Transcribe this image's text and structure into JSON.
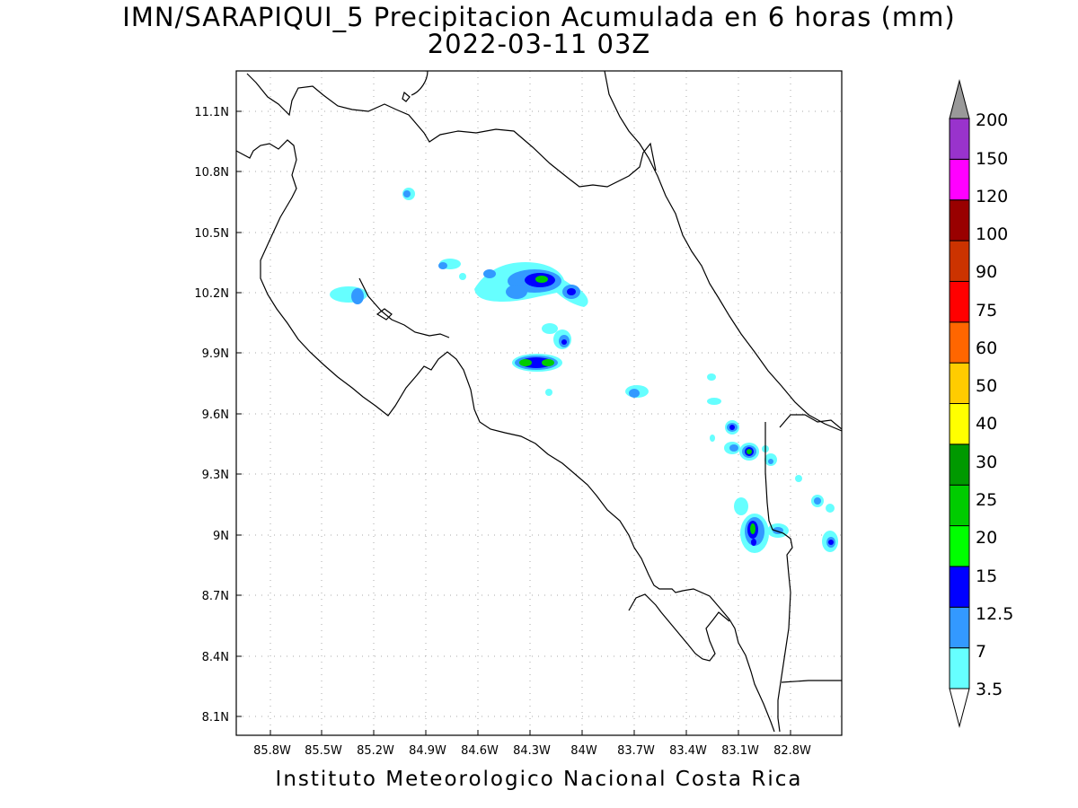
{
  "title": {
    "line1": "IMN/SARAPIQUI_5 Precipitacion Acumulada en 6 horas (mm)",
    "line2": "2022-03-11 03Z"
  },
  "footer": "Instituto Meteorologico Nacional Costa Rica",
  "map": {
    "lon_range": [
      -86.0,
      -82.6
    ],
    "lat_range": [
      8.0,
      11.3
    ],
    "lon_ticks": [
      "85.8W",
      "85.5W",
      "85.2W",
      "84.9W",
      "84.6W",
      "84.3W",
      "84W",
      "83.7W",
      "83.4W",
      "83.1W",
      "82.8W"
    ],
    "lat_ticks": [
      "11.1N",
      "10.8N",
      "10.5N",
      "10.2N",
      "9.9N",
      "9.6N",
      "9.3N",
      "9N",
      "8.7N",
      "8.4N",
      "8.1N"
    ],
    "grid": "dotted"
  },
  "colorbar": {
    "levels": [
      "3.5",
      "7",
      "12.5",
      "15",
      "20",
      "25",
      "30",
      "40",
      "50",
      "60",
      "75",
      "90",
      "100",
      "120",
      "150",
      "200"
    ],
    "colors": [
      "#66ffff",
      "#3399ff",
      "#0000ff",
      "#00ff00",
      "#00cc00",
      "#009900",
      "#ffff00",
      "#ffcc00",
      "#ff6600",
      "#ff0000",
      "#cc3300",
      "#990000",
      "#ff00ff",
      "#9933cc",
      "#f2f2f2",
      "#999999"
    ]
  }
}
